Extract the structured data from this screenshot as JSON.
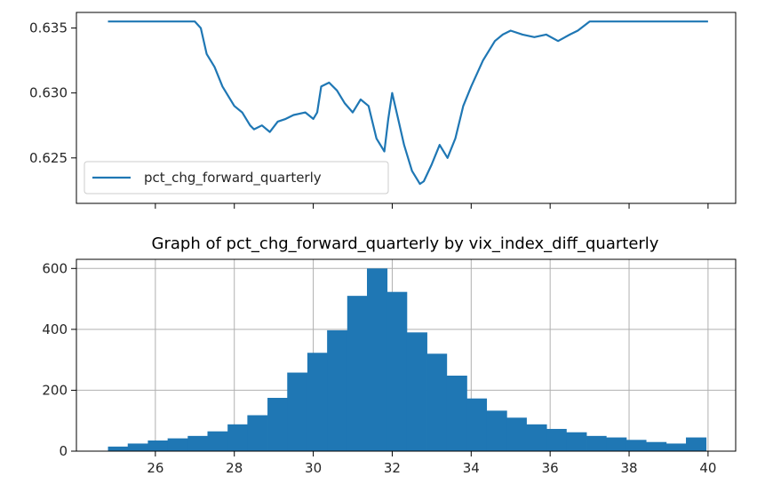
{
  "chart_data": [
    {
      "type": "line",
      "title": "",
      "xlabel": "",
      "ylabel": "",
      "ylim": [
        0.6215,
        0.6362
      ],
      "yticks": [
        0.625,
        0.63,
        0.635
      ],
      "ytick_labels": [
        "0.625",
        "0.630",
        "0.635"
      ],
      "xticks_shared_with_lower": true,
      "grid": false,
      "legend": {
        "location": "lower-left",
        "entries": [
          "pct_chg_forward_quarterly"
        ]
      },
      "series": [
        {
          "name": "pct_chg_forward_quarterly",
          "color": "#1f77b4",
          "x": [
            24.8,
            25.5,
            26.2,
            26.8,
            27.0,
            27.15,
            27.3,
            27.5,
            27.7,
            28.0,
            28.2,
            28.4,
            28.5,
            28.7,
            28.9,
            29.1,
            29.3,
            29.5,
            29.8,
            30.0,
            30.1,
            30.2,
            30.4,
            30.6,
            30.8,
            31.0,
            31.2,
            31.4,
            31.6,
            31.8,
            31.9,
            32.0,
            32.15,
            32.3,
            32.5,
            32.7,
            32.8,
            33.0,
            33.2,
            33.4,
            33.6,
            33.8,
            34.0,
            34.3,
            34.6,
            34.8,
            35.0,
            35.3,
            35.6,
            35.9,
            36.2,
            36.5,
            36.7,
            37.0,
            37.5,
            38.0,
            39.0,
            40.0
          ],
          "y": [
            0.6355,
            0.6355,
            0.6355,
            0.6355,
            0.6355,
            0.635,
            0.633,
            0.632,
            0.6305,
            0.629,
            0.6285,
            0.6275,
            0.6272,
            0.6275,
            0.627,
            0.6278,
            0.628,
            0.6283,
            0.6285,
            0.628,
            0.6285,
            0.6305,
            0.6308,
            0.6302,
            0.6292,
            0.6285,
            0.6295,
            0.629,
            0.6265,
            0.6255,
            0.628,
            0.63,
            0.628,
            0.626,
            0.624,
            0.623,
            0.6232,
            0.6245,
            0.626,
            0.625,
            0.6265,
            0.629,
            0.6305,
            0.6325,
            0.634,
            0.6345,
            0.6348,
            0.6345,
            0.6343,
            0.6345,
            0.634,
            0.6345,
            0.6348,
            0.6355,
            0.6355,
            0.6355,
            0.6355,
            0.6355
          ]
        }
      ]
    },
    {
      "type": "bar",
      "title": "Graph of pct_chg_forward_quarterly by vix_index_diff_quarterly",
      "xlabel": "",
      "ylabel": "",
      "xlim": [
        24.0,
        40.7
      ],
      "ylim": [
        0,
        630
      ],
      "xticks": [
        26,
        28,
        30,
        32,
        34,
        36,
        38,
        40
      ],
      "xtick_labels": [
        "26",
        "28",
        "30",
        "32",
        "34",
        "36",
        "38",
        "40"
      ],
      "yticks": [
        0,
        200,
        400,
        600
      ],
      "ytick_labels": [
        "0",
        "200",
        "400",
        "600"
      ],
      "grid": true,
      "color": "#1f77b4",
      "bin_edges": [
        24.8,
        25.3,
        25.81,
        26.31,
        26.82,
        27.32,
        27.83,
        28.33,
        28.84,
        29.34,
        29.85,
        30.35,
        30.86,
        31.36,
        31.87,
        32.37,
        32.88,
        33.38,
        33.89,
        34.39,
        34.9,
        35.4,
        35.91,
        36.41,
        36.92,
        37.42,
        37.93,
        38.43,
        38.94,
        39.44,
        39.95
      ],
      "values": [
        15,
        25,
        35,
        42,
        50,
        65,
        88,
        118,
        175,
        258,
        323,
        397,
        510,
        600,
        523,
        390,
        320,
        248,
        173,
        133,
        110,
        88,
        73,
        62,
        50,
        45,
        37,
        30,
        25,
        45
      ]
    }
  ]
}
